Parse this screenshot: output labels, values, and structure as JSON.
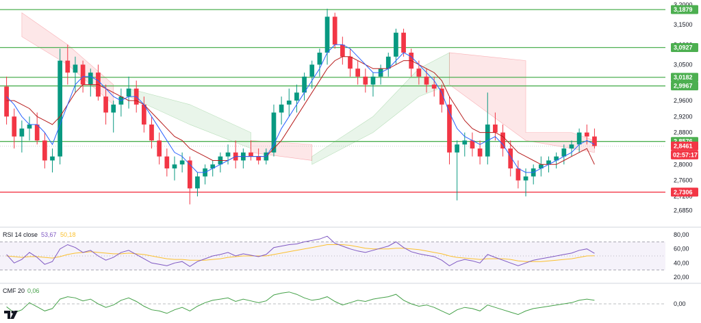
{
  "chart_data": {
    "type": "candlestick",
    "main": {
      "ylim": [
        2.66,
        3.205
      ],
      "y_ticks": [
        "3,2000",
        "3,1500",
        "3,1000",
        "3,0500",
        "2,9600",
        "2,9200",
        "2,8800",
        "2,8000",
        "2,7600",
        "2,7200",
        "2,6850"
      ],
      "y_tick_values": [
        3.2,
        3.15,
        3.1,
        3.05,
        2.96,
        2.92,
        2.88,
        2.8,
        2.76,
        2.72,
        2.685
      ],
      "levels": [
        {
          "label": "3,1879",
          "value": 3.1879,
          "color": "#4caf50"
        },
        {
          "label": "3,0927",
          "value": 3.0927,
          "color": "#4caf50"
        },
        {
          "label": "3,0182",
          "value": 3.0182,
          "color": "#4caf50"
        },
        {
          "label": "2,9967",
          "value": 2.9967,
          "color": "#4caf50"
        },
        {
          "label": "2,8576",
          "value": 2.8576,
          "color": "#4caf50"
        },
        {
          "label": "2,7306",
          "value": 2.7306,
          "color": "#f23645"
        }
      ],
      "price_label": "2,8461",
      "price_value": 2.8461,
      "countdown": "02:57:17",
      "candles": [
        [
          2.995,
          3.02,
          2.9,
          2.92
        ],
        [
          2.92,
          2.94,
          2.84,
          2.87
        ],
        [
          2.87,
          2.91,
          2.83,
          2.89
        ],
        [
          2.89,
          2.92,
          2.86,
          2.9
        ],
        [
          2.9,
          2.93,
          2.85,
          2.86
        ],
        [
          2.86,
          2.88,
          2.79,
          2.81
        ],
        [
          2.81,
          2.84,
          2.78,
          2.82
        ],
        [
          2.82,
          3.09,
          2.8,
          3.06
        ],
        [
          3.06,
          3.1,
          3.0,
          3.03
        ],
        [
          3.03,
          3.07,
          2.98,
          3.05
        ],
        [
          3.05,
          3.06,
          2.98,
          3.0
        ],
        [
          3.0,
          3.04,
          2.97,
          3.03
        ],
        [
          3.03,
          3.05,
          2.96,
          2.97
        ],
        [
          2.97,
          3.0,
          2.9,
          2.93
        ],
        [
          2.93,
          2.96,
          2.88,
          2.95
        ],
        [
          2.95,
          2.99,
          2.92,
          2.97
        ],
        [
          2.97,
          3.02,
          2.94,
          2.99
        ],
        [
          2.99,
          3.01,
          2.93,
          2.95
        ],
        [
          2.95,
          2.97,
          2.88,
          2.9
        ],
        [
          2.9,
          2.92,
          2.84,
          2.86
        ],
        [
          2.86,
          2.88,
          2.8,
          2.82
        ],
        [
          2.82,
          2.84,
          2.77,
          2.79
        ],
        [
          2.79,
          2.82,
          2.76,
          2.8
        ],
        [
          2.8,
          2.83,
          2.78,
          2.81
        ],
        [
          2.81,
          2.82,
          2.7,
          2.74
        ],
        [
          2.74,
          2.78,
          2.72,
          2.77
        ],
        [
          2.77,
          2.8,
          2.75,
          2.79
        ],
        [
          2.79,
          2.81,
          2.77,
          2.8
        ],
        [
          2.8,
          2.83,
          2.78,
          2.82
        ],
        [
          2.82,
          2.85,
          2.8,
          2.83
        ],
        [
          2.83,
          2.86,
          2.79,
          2.81
        ],
        [
          2.81,
          2.84,
          2.79,
          2.83
        ],
        [
          2.83,
          2.86,
          2.81,
          2.82
        ],
        [
          2.82,
          2.84,
          2.8,
          2.81
        ],
        [
          2.81,
          2.84,
          2.8,
          2.83
        ],
        [
          2.83,
          2.95,
          2.82,
          2.93
        ],
        [
          2.93,
          2.97,
          2.9,
          2.95
        ],
        [
          2.95,
          2.99,
          2.92,
          2.96
        ],
        [
          2.96,
          3.0,
          2.93,
          2.98
        ],
        [
          2.98,
          3.03,
          2.96,
          3.02
        ],
        [
          3.02,
          3.06,
          2.99,
          3.05
        ],
        [
          3.05,
          3.09,
          3.02,
          3.08
        ],
        [
          3.08,
          3.19,
          3.05,
          3.17
        ],
        [
          3.17,
          3.18,
          3.09,
          3.1
        ],
        [
          3.1,
          3.12,
          3.05,
          3.07
        ],
        [
          3.07,
          3.09,
          3.02,
          3.04
        ],
        [
          3.04,
          3.06,
          3.0,
          3.02
        ],
        [
          3.02,
          3.04,
          2.98,
          3.0
        ],
        [
          3.0,
          3.03,
          2.97,
          3.02
        ],
        [
          3.02,
          3.05,
          3.0,
          3.04
        ],
        [
          3.04,
          3.08,
          3.02,
          3.07
        ],
        [
          3.07,
          3.14,
          3.05,
          3.13
        ],
        [
          3.13,
          3.14,
          3.07,
          3.08
        ],
        [
          3.08,
          3.09,
          3.02,
          3.04
        ],
        [
          3.04,
          3.06,
          3.0,
          3.02
        ],
        [
          3.02,
          3.04,
          2.98,
          3.0
        ],
        [
          3.0,
          3.02,
          2.97,
          2.99
        ],
        [
          2.99,
          3.0,
          2.93,
          2.95
        ],
        [
          2.95,
          2.97,
          2.8,
          2.83
        ],
        [
          2.83,
          2.86,
          2.71,
          2.85
        ],
        [
          2.85,
          2.88,
          2.82,
          2.86
        ],
        [
          2.86,
          2.88,
          2.82,
          2.84
        ],
        [
          2.84,
          2.86,
          2.8,
          2.82
        ],
        [
          2.82,
          2.98,
          2.8,
          2.9
        ],
        [
          2.9,
          2.93,
          2.86,
          2.88
        ],
        [
          2.88,
          2.9,
          2.82,
          2.84
        ],
        [
          2.84,
          2.86,
          2.77,
          2.79
        ],
        [
          2.79,
          2.81,
          2.74,
          2.76
        ],
        [
          2.76,
          2.79,
          2.72,
          2.77
        ],
        [
          2.77,
          2.8,
          2.75,
          2.79
        ],
        [
          2.79,
          2.82,
          2.77,
          2.8
        ],
        [
          2.8,
          2.82,
          2.78,
          2.81
        ],
        [
          2.81,
          2.83,
          2.79,
          2.82
        ],
        [
          2.82,
          2.85,
          2.8,
          2.84
        ],
        [
          2.84,
          2.86,
          2.82,
          2.85
        ],
        [
          2.85,
          2.89,
          2.83,
          2.88
        ],
        [
          2.88,
          2.9,
          2.85,
          2.87
        ],
        [
          2.87,
          2.89,
          2.84,
          2.8461
        ]
      ],
      "ma_blue": [
        2.97,
        2.95,
        2.92,
        2.9,
        2.9,
        2.88,
        2.85,
        2.9,
        2.95,
        3.0,
        3.02,
        3.02,
        3.01,
        2.99,
        2.97,
        2.96,
        2.97,
        2.97,
        2.95,
        2.92,
        2.89,
        2.86,
        2.83,
        2.82,
        2.8,
        2.78,
        2.78,
        2.79,
        2.8,
        2.81,
        2.82,
        2.82,
        2.82,
        2.82,
        2.82,
        2.85,
        2.89,
        2.92,
        2.95,
        2.98,
        3.01,
        3.04,
        3.08,
        3.1,
        3.1,
        3.09,
        3.07,
        3.05,
        3.03,
        3.03,
        3.04,
        3.06,
        3.08,
        3.07,
        3.05,
        3.03,
        3.01,
        2.98,
        2.93,
        2.89,
        2.87,
        2.86,
        2.85,
        2.86,
        2.87,
        2.85,
        2.82,
        2.79,
        2.78,
        2.78,
        2.79,
        2.8,
        2.81,
        2.82,
        2.83,
        2.85,
        2.86,
        2.85
      ],
      "ma_red": [
        2.96,
        2.96,
        2.95,
        2.94,
        2.92,
        2.91,
        2.9,
        2.92,
        2.95,
        2.98,
        3.0,
        3.0,
        3.0,
        2.99,
        2.98,
        2.97,
        2.96,
        2.96,
        2.95,
        2.93,
        2.91,
        2.89,
        2.87,
        2.86,
        2.84,
        2.83,
        2.82,
        2.81,
        2.81,
        2.81,
        2.82,
        2.82,
        2.82,
        2.82,
        2.82,
        2.84,
        2.86,
        2.89,
        2.92,
        2.95,
        2.98,
        3.01,
        3.04,
        3.06,
        3.07,
        3.07,
        3.06,
        3.05,
        3.04,
        3.04,
        3.04,
        3.05,
        3.06,
        3.06,
        3.05,
        3.04,
        3.03,
        3.01,
        2.97,
        2.94,
        2.91,
        2.89,
        2.88,
        2.88,
        2.88,
        2.87,
        2.85,
        2.83,
        2.82,
        2.81,
        2.8,
        2.8,
        2.8,
        2.81,
        2.82,
        2.83,
        2.84,
        2.8
      ]
    },
    "rsi": {
      "label": "RSI 14 close",
      "value1": "53,67",
      "value2": "50,18",
      "ylim": [
        15,
        85
      ],
      "y_ticks": [
        "80,00",
        "60,00",
        "40,00",
        "20,00"
      ],
      "y_tick_values": [
        80,
        60,
        40,
        20
      ],
      "band": [
        30,
        70
      ],
      "mid": 50,
      "rsi_values": [
        52,
        40,
        45,
        55,
        48,
        38,
        42,
        60,
        66,
        62,
        55,
        58,
        50,
        44,
        48,
        55,
        58,
        52,
        46,
        40,
        38,
        36,
        40,
        42,
        35,
        42,
        46,
        50,
        52,
        55,
        50,
        53,
        51,
        49,
        52,
        62,
        64,
        66,
        67,
        70,
        72,
        74,
        78,
        68,
        64,
        60,
        57,
        55,
        58,
        61,
        64,
        70,
        62,
        56,
        53,
        51,
        49,
        44,
        36,
        42,
        45,
        43,
        40,
        52,
        48,
        44,
        40,
        36,
        40,
        44,
        46,
        48,
        50,
        52,
        54,
        58,
        60,
        53.67
      ],
      "signal_values": [
        50,
        49,
        48,
        49,
        49,
        48,
        47,
        49,
        52,
        54,
        55,
        56,
        55,
        54,
        53,
        53,
        54,
        53,
        52,
        50,
        48,
        46,
        45,
        45,
        44,
        44,
        44,
        45,
        46,
        48,
        49,
        50,
        50,
        50,
        50,
        52,
        54,
        56,
        58,
        60,
        62,
        64,
        66,
        66,
        66,
        65,
        63,
        61,
        60,
        60,
        60,
        61,
        61,
        60,
        59,
        57,
        55,
        53,
        50,
        48,
        47,
        46,
        45,
        46,
        46,
        46,
        45,
        43,
        42,
        42,
        42,
        43,
        44,
        45,
        46,
        48,
        50,
        50.18
      ],
      "rsi_color": "#7e57c2",
      "signal_color": "#fbc02d"
    },
    "cmf": {
      "label": "CMF 20",
      "value": "0,06",
      "ylim": [
        -0.3,
        0.3
      ],
      "y_ticks": [
        "0,00"
      ],
      "y_tick_values": [
        0
      ],
      "values": [
        -0.05,
        -0.15,
        -0.1,
        0.02,
        -0.05,
        -0.12,
        -0.08,
        0.08,
        0.12,
        0.1,
        0.05,
        0.08,
        0.0,
        -0.06,
        -0.02,
        0.06,
        0.1,
        0.04,
        -0.04,
        -0.1,
        -0.12,
        -0.16,
        -0.1,
        -0.06,
        -0.12,
        -0.04,
        0.02,
        0.06,
        0.08,
        0.1,
        0.04,
        0.08,
        0.05,
        0.02,
        0.05,
        0.15,
        0.18,
        0.2,
        0.16,
        0.1,
        0.06,
        0.08,
        0.12,
        0.04,
        -0.02,
        0.02,
        0.06,
        0.04,
        0.08,
        0.1,
        0.12,
        0.16,
        0.06,
        0.0,
        -0.04,
        -0.02,
        -0.06,
        -0.12,
        -0.18,
        -0.1,
        -0.06,
        -0.08,
        -0.12,
        -0.02,
        -0.06,
        -0.1,
        -0.14,
        -0.18,
        -0.12,
        -0.08,
        -0.06,
        -0.04,
        -0.02,
        0.0,
        0.02,
        0.06,
        0.08,
        0.06
      ],
      "color": "#43a047"
    }
  }
}
